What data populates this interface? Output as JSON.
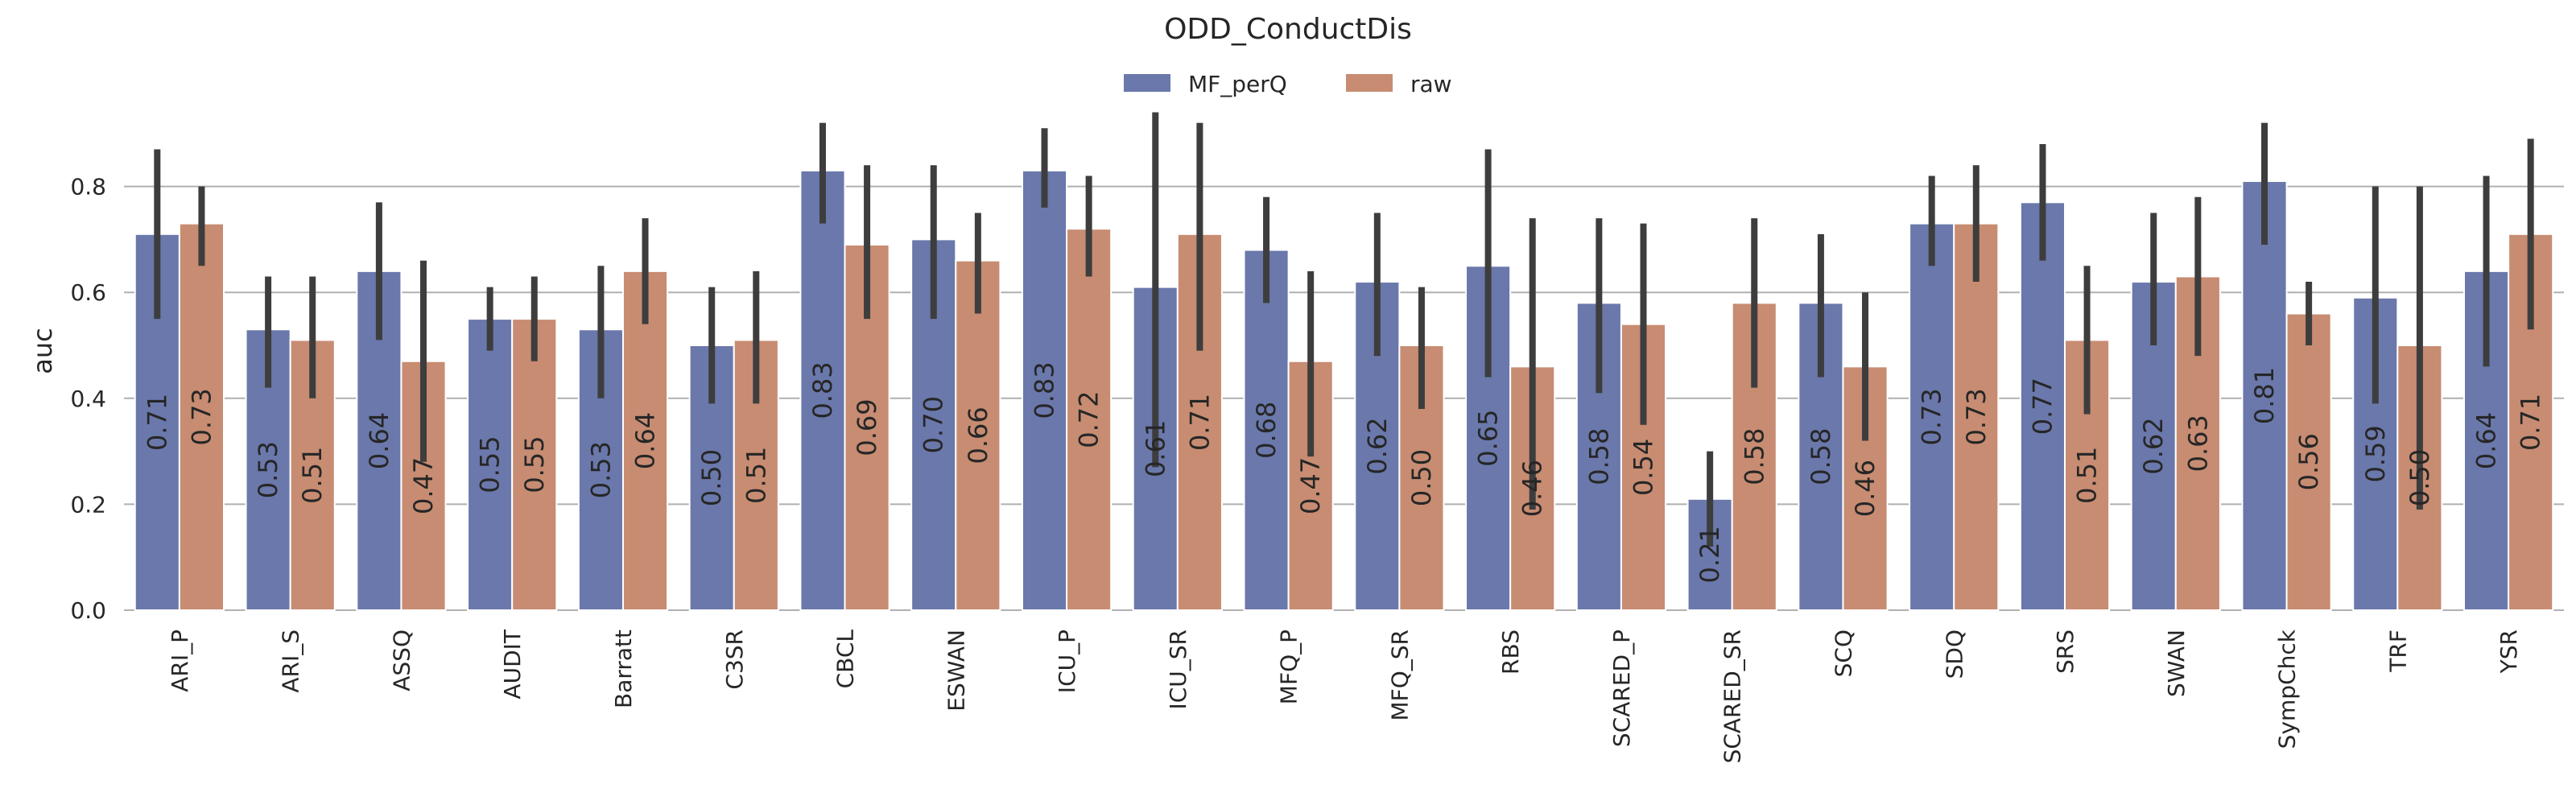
{
  "chart_data": {
    "type": "bar",
    "title": "ODD_ConductDis",
    "xlabel": "",
    "ylabel": "auc",
    "ylim": [
      0,
      0.95
    ],
    "yticks": [
      "0.0",
      "0.2",
      "0.4",
      "0.6",
      "0.8"
    ],
    "grid": true,
    "legend_position": "top-center",
    "categories": [
      "ARI_P",
      "ARI_S",
      "ASSQ",
      "AUDIT",
      "Barratt",
      "C3SR",
      "CBCL",
      "ESWAN",
      "ICU_P",
      "ICU_SR",
      "MFQ_P",
      "MFQ_SR",
      "RBS",
      "SCARED_P",
      "SCARED_SR",
      "SCQ",
      "SDQ",
      "SRS",
      "SWAN",
      "SympChck",
      "TRF",
      "YSR"
    ],
    "series": [
      {
        "name": "MF_perQ",
        "color": "#6a78ab",
        "values": [
          0.71,
          0.53,
          0.64,
          0.55,
          0.53,
          0.5,
          0.83,
          0.7,
          0.83,
          0.61,
          0.68,
          0.62,
          0.65,
          0.58,
          0.21,
          0.58,
          0.73,
          0.77,
          0.62,
          0.81,
          0.59,
          0.64
        ],
        "labels": [
          "0.71",
          "0.53",
          "0.64",
          "0.55",
          "0.53",
          "0.50",
          "0.83",
          "0.70",
          "0.83",
          "0.61",
          "0.68",
          "0.62",
          "0.65",
          "0.58",
          "0.21",
          "0.58",
          "0.73",
          "0.77",
          "0.62",
          "0.81",
          "0.59",
          "0.64"
        ],
        "ci_low": [
          0.55,
          0.42,
          0.51,
          0.49,
          0.4,
          0.39,
          0.73,
          0.55,
          0.76,
          0.27,
          0.58,
          0.48,
          0.44,
          0.41,
          0.12,
          0.44,
          0.65,
          0.66,
          0.5,
          0.69,
          0.39,
          0.46
        ],
        "ci_high": [
          0.87,
          0.63,
          0.77,
          0.61,
          0.65,
          0.61,
          0.92,
          0.84,
          0.91,
          0.94,
          0.78,
          0.75,
          0.87,
          0.74,
          0.3,
          0.71,
          0.82,
          0.88,
          0.75,
          0.92,
          0.8,
          0.82
        ]
      },
      {
        "name": "raw",
        "color": "#c78c72",
        "values": [
          0.73,
          0.51,
          0.47,
          0.55,
          0.64,
          0.51,
          0.69,
          0.66,
          0.72,
          0.71,
          0.47,
          0.5,
          0.46,
          0.54,
          0.58,
          0.46,
          0.73,
          0.51,
          0.63,
          0.56,
          0.5,
          0.71
        ],
        "labels": [
          "0.73",
          "0.51",
          "0.47",
          "0.55",
          "0.64",
          "0.51",
          "0.69",
          "0.66",
          "0.72",
          "0.71",
          "0.47",
          "0.50",
          "0.46",
          "0.54",
          "0.58",
          "0.46",
          "0.73",
          "0.51",
          "0.63",
          "0.56",
          "0.50",
          "0.71"
        ],
        "ci_low": [
          0.65,
          0.4,
          0.28,
          0.47,
          0.54,
          0.39,
          0.55,
          0.56,
          0.63,
          0.49,
          0.29,
          0.38,
          0.19,
          0.35,
          0.42,
          0.32,
          0.62,
          0.37,
          0.48,
          0.5,
          0.19,
          0.53
        ],
        "ci_high": [
          0.8,
          0.63,
          0.66,
          0.63,
          0.74,
          0.64,
          0.84,
          0.75,
          0.82,
          0.92,
          0.64,
          0.61,
          0.74,
          0.73,
          0.74,
          0.6,
          0.84,
          0.65,
          0.78,
          0.62,
          0.8,
          0.89
        ]
      }
    ]
  }
}
